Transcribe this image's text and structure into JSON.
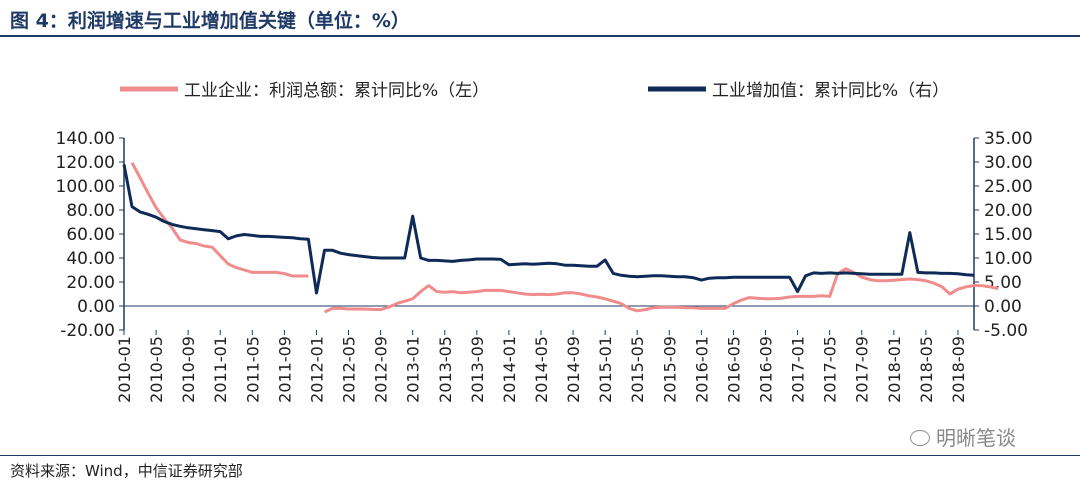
{
  "header": {
    "title": "图 4：利润增速与工业增加值关键（单位：%）"
  },
  "footer": {
    "source": "资料来源：Wind，中信证券研究部",
    "watermark": "明晰笔谈"
  },
  "colors": {
    "series1": "#f08c8c",
    "series2": "#0e2a56",
    "axis": "#1f3a66",
    "text": "#222222"
  },
  "chart_data": {
    "type": "line",
    "title": "",
    "y_left": {
      "min": -20,
      "max": 140,
      "ticks": [
        "140.00",
        "120.00",
        "100.00",
        "80.00",
        "60.00",
        "40.00",
        "20.00",
        "0.00",
        "-20.00"
      ]
    },
    "y_right": {
      "min": -5,
      "max": 35,
      "ticks": [
        "35.00",
        "30.00",
        "25.00",
        "20.00",
        "15.00",
        "10.00",
        "5.00",
        "0.00",
        "-5.00"
      ]
    },
    "x_tick_labels": [
      "2010-01",
      "2010-05",
      "2010-09",
      "2011-01",
      "2011-05",
      "2011-09",
      "2012-01",
      "2012-05",
      "2012-09",
      "2013-01",
      "2013-05",
      "2013-09",
      "2014-01",
      "2014-05",
      "2014-09",
      "2015-01",
      "2015-05",
      "2015-09",
      "2016-01",
      "2016-05",
      "2016-09",
      "2017-01",
      "2017-05",
      "2017-09",
      "2018-01",
      "2018-05",
      "2018-09"
    ],
    "x_start": "2010-01",
    "series": [
      {
        "name": "工业企业：利润总额：累计同比%（左）",
        "axis": "left",
        "values": [
          null,
          119.4,
          107.0,
          94.0,
          82.0,
          73.0,
          65.0,
          55.0,
          53.0,
          52.0,
          50.0,
          49.0,
          42.0,
          35.0,
          32.0,
          30.0,
          28.0,
          28.0,
          28.0,
          28.0,
          27.0,
          25.0,
          25.0,
          25.0,
          null,
          -5.0,
          -2.0,
          -2.0,
          -2.5,
          -2.5,
          -2.5,
          -2.8,
          -3.0,
          -1.0,
          2.0,
          4.0,
          6.0,
          12.0,
          17.0,
          12.0,
          11.5,
          12.0,
          11.0,
          11.5,
          12.0,
          13.0,
          13.0,
          13.0,
          12.0,
          11.0,
          10.0,
          9.5,
          9.8,
          9.5,
          10.0,
          11.0,
          11.0,
          10.0,
          8.5,
          7.5,
          6.0,
          4.0,
          2.0,
          -2.0,
          -4.0,
          -3.0,
          -1.5,
          -1.0,
          -1.0,
          -1.0,
          -1.5,
          -1.5,
          -2.0,
          -2.0,
          -2.0,
          -2.0,
          2.0,
          5.0,
          7.0,
          6.5,
          6.0,
          6.0,
          6.5,
          7.5,
          8.0,
          8.0,
          8.0,
          8.5,
          8.0,
          27.0,
          31.0,
          28.0,
          24.0,
          22.0,
          21.0,
          21.0,
          21.5,
          22.0,
          22.5,
          22.0,
          21.0,
          19.0,
          16.0,
          10.0,
          14.0,
          16.0,
          17.0,
          17.0,
          16.0,
          14.5
        ]
      },
      {
        "name": "工业增加值：累计同比%（右）",
        "axis": "right",
        "values": [
          29.5,
          20.7,
          19.6,
          19.1,
          18.5,
          17.6,
          17.0,
          16.6,
          16.3,
          16.1,
          15.9,
          15.7,
          15.5,
          14.0,
          14.6,
          14.9,
          14.7,
          14.5,
          14.5,
          14.4,
          14.3,
          14.2,
          14.0,
          13.9,
          2.7,
          11.6,
          11.6,
          11.0,
          10.7,
          10.5,
          10.3,
          10.1,
          10.0,
          10.0,
          10.0,
          10.0,
          18.7,
          10.0,
          9.5,
          9.5,
          9.4,
          9.3,
          9.5,
          9.6,
          9.8,
          9.8,
          9.8,
          9.7,
          8.6,
          8.7,
          8.8,
          8.7,
          8.8,
          8.9,
          8.8,
          8.5,
          8.5,
          8.4,
          8.3,
          8.3,
          9.6,
          6.8,
          6.4,
          6.2,
          6.1,
          6.2,
          6.3,
          6.3,
          6.2,
          6.1,
          6.1,
          5.9,
          5.4,
          5.8,
          5.9,
          5.9,
          6.0,
          6.0,
          6.0,
          6.0,
          6.0,
          6.0,
          6.0,
          6.0,
          3.0,
          6.3,
          6.9,
          6.8,
          6.9,
          6.8,
          6.9,
          6.8,
          6.7,
          6.6,
          6.6,
          6.6,
          6.6,
          6.6,
          15.3,
          7.0,
          6.9,
          6.9,
          6.8,
          6.8,
          6.7,
          6.5,
          6.4
        ]
      }
    ]
  }
}
